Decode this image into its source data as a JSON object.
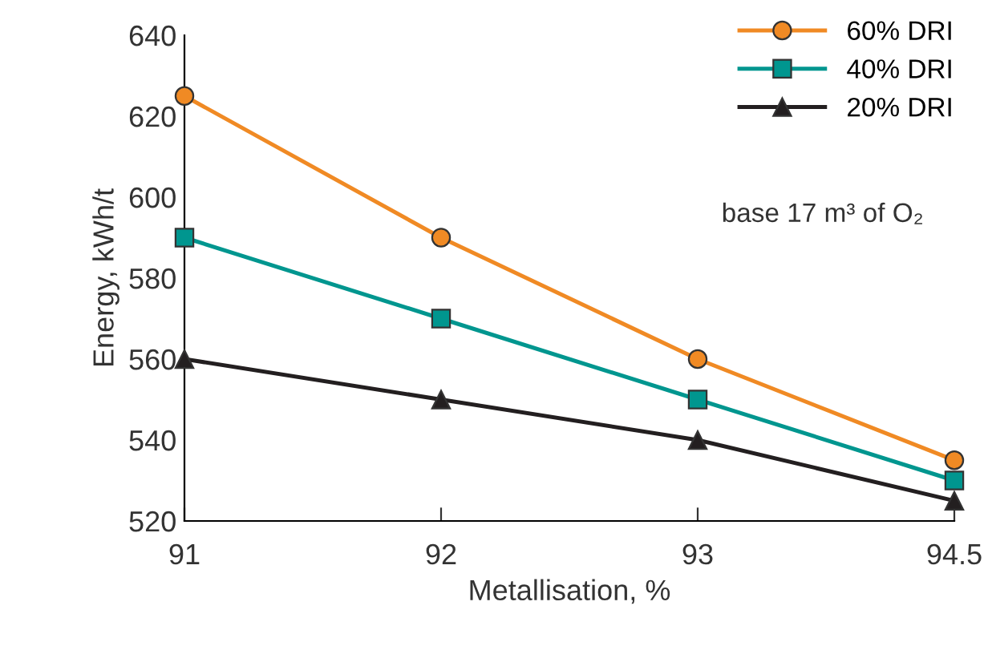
{
  "chart_data": {
    "type": "line",
    "xlabel": "Metallisation, %",
    "ylabel": "Energy, kWh/t",
    "categories": [
      "91",
      "92",
      "93",
      "94.5"
    ],
    "series": [
      {
        "name": "60% DRI",
        "color": "#f08a24",
        "marker": "circle",
        "values": [
          625,
          590,
          560,
          535
        ]
      },
      {
        "name": "40% DRI",
        "color": "#00968f",
        "marker": "square",
        "values": [
          590,
          570,
          550,
          530
        ]
      },
      {
        "name": "20% DRI",
        "color": "#231f20",
        "marker": "triangle",
        "values": [
          560,
          550,
          540,
          525
        ]
      }
    ],
    "ylim": [
      520,
      640
    ],
    "yticks": [
      520,
      540,
      560,
      580,
      600,
      620,
      640
    ],
    "annotations": [
      "base 17 m³ of O₂"
    ],
    "grid": false,
    "legend": "top right",
    "line_style": "solid"
  }
}
